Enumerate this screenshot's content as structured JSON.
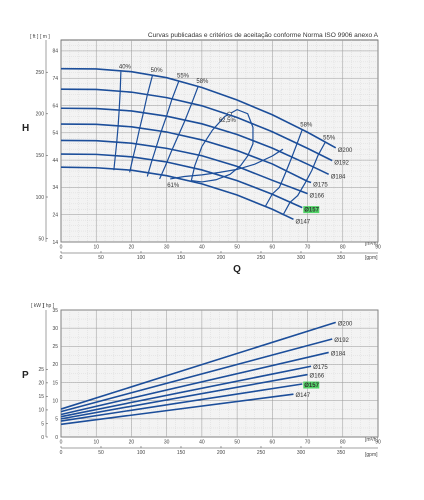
{
  "chart_data": [
    {
      "type": "line",
      "title": "Curvas publicadas e critérios de aceitação conforme Norma ISO 9906 anexo A",
      "ylabel": "H",
      "xlabel": "Q",
      "y_units": [
        "[ ft ]",
        "[ m ]"
      ],
      "x_units": [
        "[m³/h]",
        "[gpm]"
      ],
      "xlim": [
        0,
        90
      ],
      "ylim": [
        14,
        88
      ],
      "x_ticks_m3h": [
        0,
        10,
        20,
        30,
        40,
        50,
        60,
        70,
        80,
        90
      ],
      "x_ticks_gpm": [
        0,
        50,
        100,
        150,
        200,
        250,
        300,
        350
      ],
      "y_ticks_m": [
        14,
        24,
        34,
        44,
        54,
        64,
        74,
        84
      ],
      "y_ticks_ft": [
        50,
        100,
        150,
        200,
        250
      ],
      "highlight_color": "#52d668",
      "curve_color": "#1c4e9a",
      "grid": true,
      "series": [
        {
          "name": "Ø200",
          "x": [
            0,
            10,
            20,
            30,
            40,
            50,
            60,
            70,
            78
          ],
          "y": [
            77.5,
            77.4,
            76.4,
            74.2,
            70.6,
            66,
            60.6,
            54.2,
            48.5
          ]
        },
        {
          "name": "Ø192",
          "x": [
            0,
            10,
            20,
            30,
            40,
            50,
            60,
            70,
            77
          ],
          "y": [
            70,
            69.9,
            68.9,
            66.9,
            63.9,
            59.6,
            54.4,
            48.3,
            43.8
          ]
        },
        {
          "name": "Ø184",
          "x": [
            0,
            10,
            20,
            30,
            40,
            50,
            60,
            70,
            76
          ],
          "y": [
            63,
            62.9,
            62,
            60.1,
            57.3,
            53.4,
            48.4,
            42.5,
            38.8
          ]
        },
        {
          "name": "Ø175",
          "x": [
            0,
            10,
            20,
            30,
            40,
            50,
            60,
            70,
            71
          ],
          "y": [
            57.2,
            57.1,
            56.2,
            54.3,
            51.4,
            47.5,
            42.6,
            36.2,
            35.8
          ]
        },
        {
          "name": "Ø166",
          "x": [
            0,
            10,
            20,
            30,
            40,
            50,
            60,
            70
          ],
          "y": [
            51.2,
            51.1,
            50.2,
            48.3,
            45.6,
            41.7,
            36.6,
            31.7
          ]
        },
        {
          "name": "Ø157",
          "x": [
            0,
            10,
            20,
            30,
            40,
            50,
            60,
            68.5
          ],
          "y": [
            46.2,
            46.1,
            45.2,
            43.3,
            40.4,
            36.5,
            31.5,
            26.6
          ],
          "highlight": true
        },
        {
          "name": "Ø147",
          "x": [
            0,
            10,
            20,
            30,
            40,
            50,
            60,
            66
          ],
          "y": [
            41.4,
            41.2,
            40.3,
            38.3,
            35.3,
            31.2,
            26,
            22.3
          ]
        }
      ],
      "efficiency_lines": [
        {
          "label": "40%",
          "x": [
            17,
            16.8,
            16.5,
            16.2,
            15.8,
            15.4,
            15
          ],
          "y": [
            76.4,
            69.0,
            62.0,
            56.2,
            50.2,
            45.2,
            40.3
          ]
        },
        {
          "label": "50%",
          "x": [
            26,
            24.5,
            23.3,
            22.2,
            21.2,
            20.3,
            19.5
          ],
          "y": [
            75.2,
            67.8,
            60.8,
            54.9,
            49.0,
            44.2,
            39.5
          ]
        },
        {
          "label": "55%",
          "x": [
            33.5,
            31.5,
            29.8,
            28.2,
            26.8,
            25.6,
            24.5
          ],
          "y": [
            73.1,
            66.3,
            59.5,
            53.6,
            47.8,
            42.9,
            38.0
          ]
        },
        {
          "label": "58%",
          "x": [
            39,
            37,
            35,
            33,
            31.2,
            29.6,
            28
          ],
          "y": [
            71.2,
            64.4,
            57.9,
            52.1,
            46.8,
            41.8,
            37.1
          ]
        },
        {
          "label": "58%",
          "x": [
            68.5,
            67,
            65.4,
            63.8,
            62,
            60,
            58
          ],
          "y": [
            55.2,
            50.0,
            44.6,
            39.5,
            34.0,
            31.6,
            27.0
          ]
        },
        {
          "label": "55%",
          "x": [
            75,
            73,
            71.2,
            69.3,
            67.2,
            65,
            63
          ],
          "y": [
            50.5,
            45.8,
            40.2,
            35.6,
            31.0,
            28.5,
            23.8
          ]
        }
      ],
      "efficiency_island": {
        "label": "62,5%",
        "points": [
          [
            37,
            36.5
          ],
          [
            38,
            42
          ],
          [
            40,
            49
          ],
          [
            43,
            55
          ],
          [
            46.5,
            60
          ],
          [
            50,
            62.5
          ],
          [
            53,
            61
          ],
          [
            54.5,
            56
          ],
          [
            54.5,
            50
          ],
          [
            53,
            45.5
          ],
          [
            51,
            42
          ],
          [
            48,
            38.8
          ],
          [
            44,
            36.8
          ],
          [
            40,
            36.0
          ],
          [
            37,
            36.5
          ]
        ],
        "bep_marker": [
          47.8,
          60.8
        ]
      },
      "eff_61": {
        "label": "61%",
        "x": [
          31,
          35,
          40,
          45,
          50,
          55,
          60,
          63
        ],
        "y": [
          37.1,
          38.0,
          38.6,
          39.5,
          40.6,
          42.5,
          45.5,
          48.0
        ]
      }
    },
    {
      "type": "line",
      "ylabel": "P",
      "y_units": [
        "[ kW ]",
        "[ hp ]"
      ],
      "x_units": [
        "[m³/h]",
        "[gpm]"
      ],
      "xlim": [
        0,
        90
      ],
      "ylim": [
        0,
        35
      ],
      "x_ticks_m3h": [
        0,
        10,
        20,
        30,
        40,
        50,
        60,
        70,
        80,
        90
      ],
      "x_ticks_gpm": [
        0,
        50,
        100,
        150,
        200,
        250,
        300,
        350
      ],
      "y_ticks_kw": [
        0,
        5,
        10,
        15,
        20,
        25,
        30,
        35
      ],
      "y_ticks_hp": [
        0,
        5,
        10,
        15,
        20,
        25
      ],
      "series": [
        {
          "name": "Ø200",
          "x": [
            0,
            78
          ],
          "y": [
            7.7,
            31.6
          ]
        },
        {
          "name": "Ø192",
          "x": [
            0,
            77
          ],
          "y": [
            7.0,
            27.0
          ]
        },
        {
          "name": "Ø184",
          "x": [
            0,
            76
          ],
          "y": [
            6.2,
            23.3
          ]
        },
        {
          "name": "Ø175",
          "x": [
            0,
            71
          ],
          "y": [
            5.6,
            19.5
          ]
        },
        {
          "name": "Ø166",
          "x": [
            0,
            70
          ],
          "y": [
            5.0,
            17.2
          ]
        },
        {
          "name": "Ø157",
          "x": [
            0,
            68.5
          ],
          "y": [
            4.4,
            14.6
          ],
          "highlight": true
        },
        {
          "name": "Ø147",
          "x": [
            0,
            66
          ],
          "y": [
            3.5,
            11.8
          ]
        }
      ]
    }
  ]
}
